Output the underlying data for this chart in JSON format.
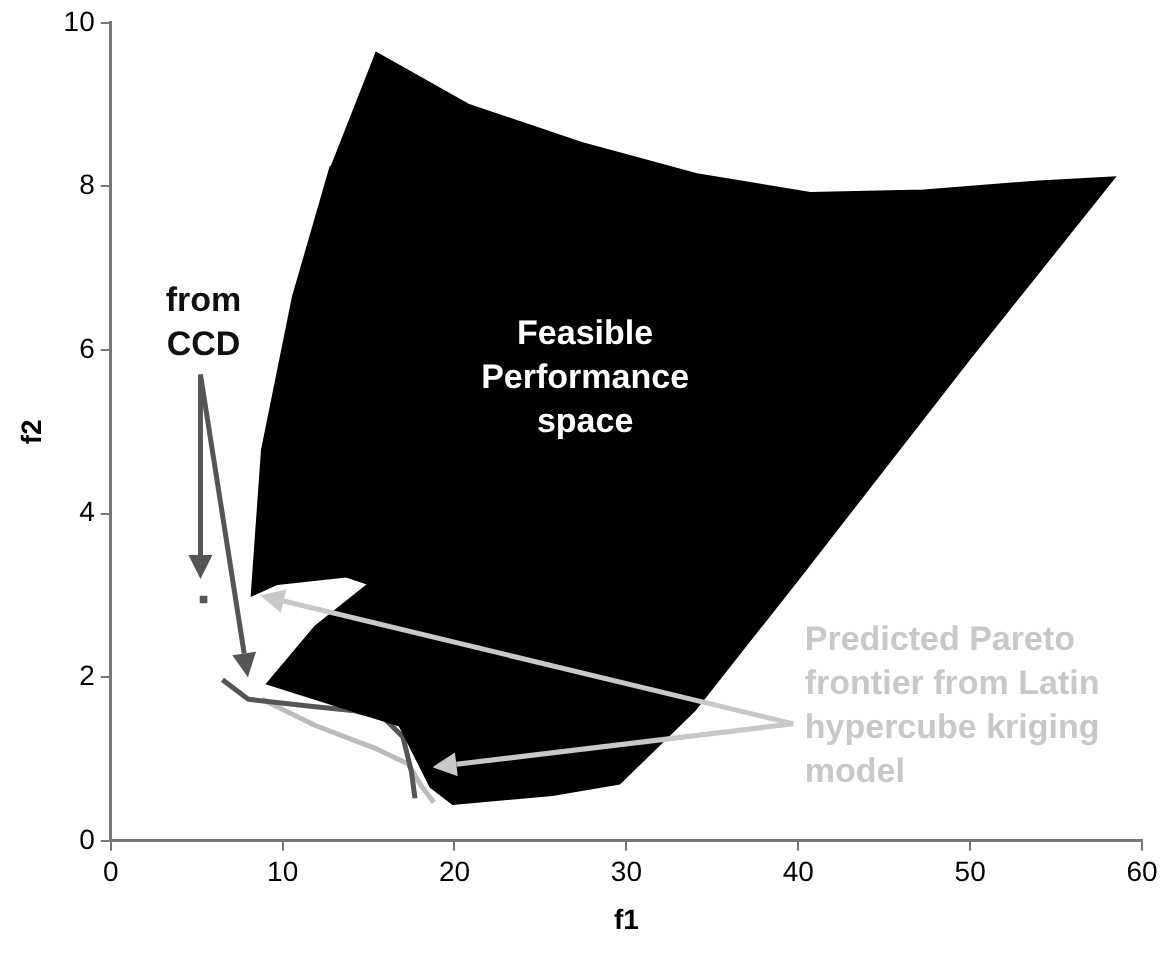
{
  "chart_data": {
    "type": "line",
    "xlabel": "f1",
    "ylabel": "f2",
    "xlim": [
      0,
      60
    ],
    "ylim": [
      0,
      10
    ],
    "xticks": [
      0,
      10,
      20,
      30,
      40,
      50,
      60
    ],
    "yticks": [
      0,
      2,
      4,
      6,
      8,
      10
    ],
    "grid": false,
    "legend": false,
    "marker": "none",
    "series": [
      {
        "type": "area",
        "color": "#000000",
        "x": [
          15.4,
          20.8,
          27.4,
          34.1,
          40.7,
          47.3,
          54.0,
          58.4,
          50.0,
          40.0,
          34.0,
          29.6,
          25.7,
          19.9,
          18.6,
          16.8,
          13.3,
          9.1,
          11.9,
          15.0,
          13.7,
          9.7,
          8.2,
          8.8,
          10.6,
          12.8
        ],
        "values": [
          9.64,
          9.0,
          8.53,
          8.15,
          7.92,
          7.95,
          8.06,
          8.11,
          5.9,
          3.2,
          1.6,
          0.7,
          0.56,
          0.45,
          0.66,
          1.41,
          1.64,
          1.92,
          2.62,
          3.14,
          3.23,
          3.14,
          3.0,
          4.78,
          6.65,
          8.25
        ]
      },
      {
        "color": "#555555",
        "x": [
          6.5,
          8.0,
          11.9,
          14.2,
          15.9,
          17.0,
          17.5,
          17.7
        ],
        "values": [
          1.97,
          1.73,
          1.64,
          1.59,
          1.5,
          1.27,
          0.84,
          0.52
        ]
      },
      {
        "type": "scatter",
        "marker": "square",
        "color": "#555555",
        "x": [
          5.4
        ],
        "values": [
          2.95
        ]
      },
      {
        "color": "#bbbbbb",
        "x": [
          8.8,
          11.9,
          15.5,
          17.3,
          18.1,
          18.8
        ],
        "values": [
          1.73,
          1.41,
          1.12,
          0.94,
          0.66,
          0.47
        ]
      }
    ],
    "annotations": [
      "Feasible Performance space",
      "from CCD",
      "Predicted Pareto frontier from Latin hypercube kriging model"
    ]
  }
}
